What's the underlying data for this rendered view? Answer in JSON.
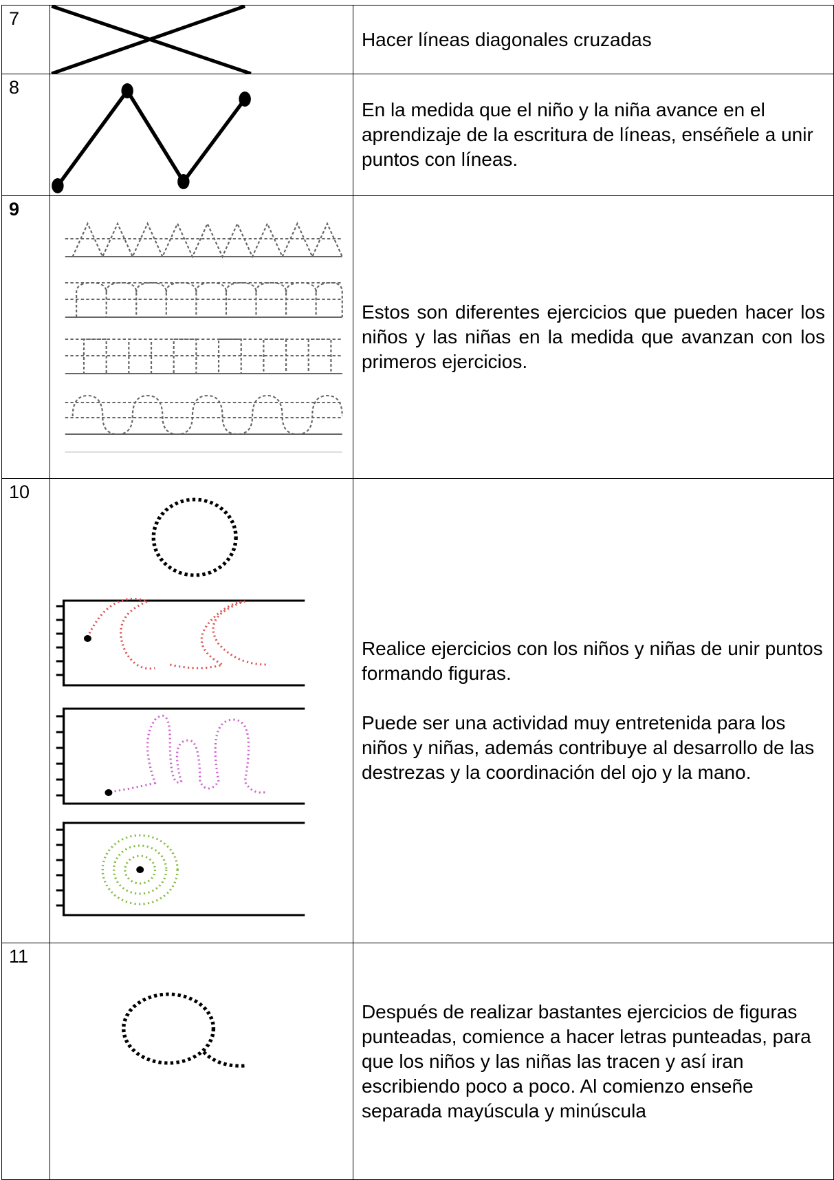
{
  "rows": [
    {
      "number": "7",
      "text": [
        "Hacer líneas diagonales cruzadas"
      ]
    },
    {
      "number": "8",
      "text": [
        " En la medida que el niño y la niña avance en el aprendizaje de la escritura de líneas, enséñele a unir puntos con líneas."
      ]
    },
    {
      "number": "9",
      "text": [
        "Estos son diferentes ejercicios que pueden hacer los niños y las niñas en la medida que avanzan con los primeros ejercicios."
      ]
    },
    {
      "number": "10",
      "text": [
        "Realice ejercicios con los niños y niñas de unir puntos formando figuras.",
        "Puede ser una actividad muy entretenida para los niños y niñas, además contribuye al desarrollo de las destrezas  y la coordinación del ojo y la mano."
      ]
    },
    {
      "number": "11",
      "text": [
        "Después de realizar bastantes ejercicios de figuras punteadas, comience a hacer letras punteadas, para que los niños y las niñas las tracen y así iran escribiendo poco a poco. Al comienzo  enseñe separada mayúscula y minúscula"
      ]
    }
  ]
}
